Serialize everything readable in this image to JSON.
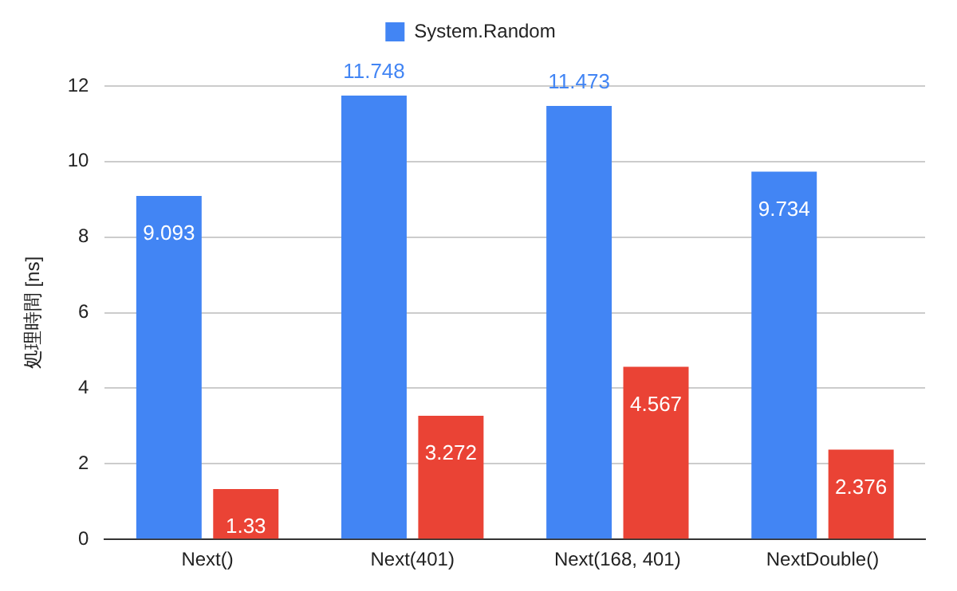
{
  "chart_data": {
    "type": "bar",
    "ylabel": "処理時間 [ns]",
    "categories": [
      "Next()",
      "Next(401)",
      "Next(168, 401)",
      "NextDouble()"
    ],
    "series": [
      {
        "name": "System.Random",
        "color": "#4285f4",
        "values": [
          9.093,
          11.748,
          11.473,
          9.734
        ]
      },
      {
        "color": "#ea4335",
        "values": [
          1.33,
          3.272,
          4.567,
          2.376
        ]
      }
    ],
    "ylim": [
      0,
      12
    ],
    "yticks": [
      0,
      2,
      4,
      6,
      8,
      10,
      12
    ],
    "grid": "y",
    "legend": "top",
    "data_labels": true
  }
}
